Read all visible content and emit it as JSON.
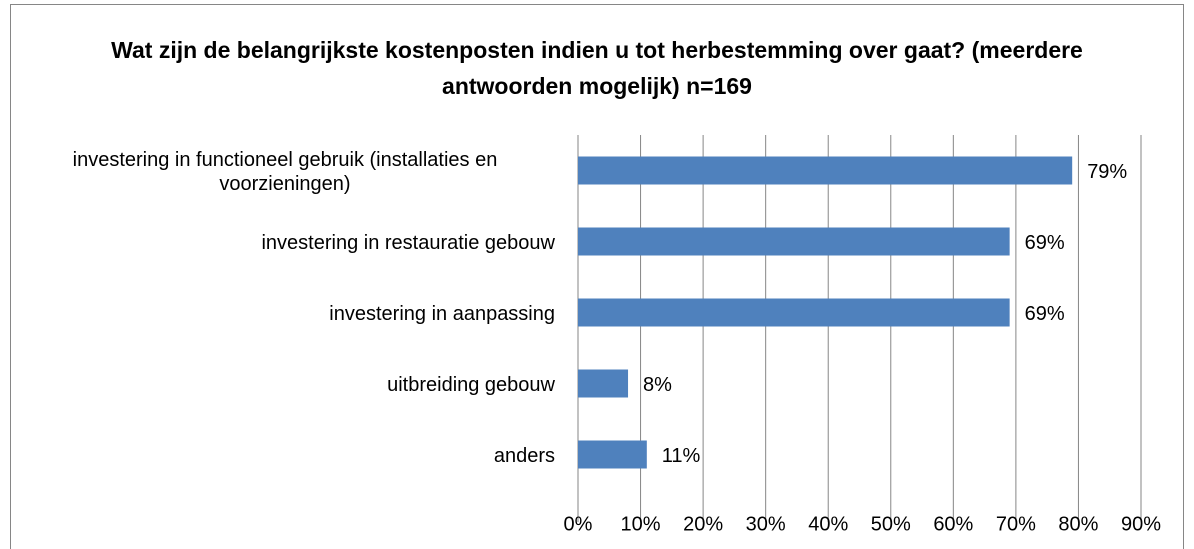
{
  "chart_data": {
    "type": "bar",
    "orientation": "horizontal",
    "title": "Wat zijn de belangrijkste kostenposten indien u tot herbestemming over gaat? (meerdere antwoorden mogelijk)  n=169",
    "categories": [
      "investering in functioneel gebruik (installaties en voorzieningen)",
      "investering in restauratie gebouw",
      "investering in aanpassing",
      "uitbreiding gebouw",
      "anders"
    ],
    "values": [
      79,
      69,
      69,
      8,
      11
    ],
    "value_labels": [
      "79%",
      "69%",
      "69%",
      "8%",
      "11%"
    ],
    "color": "#4f81bd",
    "xlim": [
      0,
      90
    ],
    "xticks": [
      {
        "value": 0,
        "label": "0%"
      },
      {
        "value": 10,
        "label": "10%"
      },
      {
        "value": 20,
        "label": "20%"
      },
      {
        "value": 30,
        "label": "30%"
      },
      {
        "value": 40,
        "label": "40%"
      },
      {
        "value": 50,
        "label": "50%"
      },
      {
        "value": 60,
        "label": "60%"
      },
      {
        "value": 70,
        "label": "70%"
      },
      {
        "value": 80,
        "label": "80%"
      },
      {
        "value": 90,
        "label": "90%"
      }
    ],
    "grid": true
  }
}
